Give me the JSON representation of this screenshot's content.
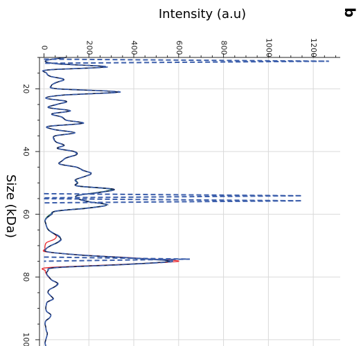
{
  "chart_data": {
    "type": "line",
    "panel_label": "b",
    "xlabel": "Size (kDa)",
    "ylabel": "Intensity (a.u)",
    "xlim": [
      10,
      102
    ],
    "ylim": [
      -20,
      1320
    ],
    "xticks": [
      20,
      40,
      60,
      80,
      100
    ],
    "yticks": [
      0,
      200,
      400,
      600,
      800,
      1000,
      1200
    ],
    "x_tick_labels": [
      "20",
      "40",
      "60",
      "80",
      "100"
    ],
    "y_tick_labels": [
      "0",
      "200",
      "400",
      "600",
      "800",
      "1000",
      "1200"
    ],
    "grid": true,
    "legend": "none",
    "colors": {
      "navy": "#0b1d4d",
      "blue_dashed": "#3b5eab",
      "green": "#2e7d4f",
      "red": "#e8262b",
      "grid": "#d9d9d9",
      "axis": "#222222"
    },
    "series": [
      {
        "x": [
          10,
          11,
          12,
          13,
          14,
          15,
          16,
          17,
          18,
          19,
          20,
          21,
          22,
          23,
          24,
          25,
          26,
          27,
          28,
          29,
          30,
          31,
          32,
          33,
          34,
          35,
          36,
          37,
          38,
          39,
          40,
          41,
          42,
          43,
          44,
          45,
          46,
          47,
          48,
          49,
          50,
          51,
          52,
          53,
          54,
          55,
          56,
          57,
          58,
          59,
          60,
          61,
          62,
          63,
          64,
          65,
          66,
          67,
          68,
          69,
          70,
          71,
          72,
          73,
          74,
          75,
          76,
          77,
          78,
          79,
          80,
          81,
          82,
          83,
          84,
          85,
          86,
          87,
          88,
          89,
          90,
          91,
          92,
          93,
          94,
          95,
          96,
          97,
          98,
          99,
          100,
          101,
          102
        ],
        "values": [
          100,
          8,
          55,
          275,
          18,
          12,
          28,
          88,
          55,
          33,
          60,
          330,
          85,
          8,
          100,
          55,
          20,
          115,
          35,
          80,
          100,
          170,
          18,
          48,
          135,
          50,
          45,
          55,
          90,
          60,
          135,
          145,
          100,
          80,
          70,
          145,
          175,
          210,
          180,
          140,
          150,
          150,
          310,
          250,
          150,
          150,
          200,
          280,
          200,
          55,
          35,
          15,
          5,
          8,
          12,
          20,
          40,
          65,
          75,
          60,
          30,
          10,
          18,
          160,
          400,
          560,
          360,
          55,
          18,
          12,
          22,
          35,
          60,
          50,
          25,
          18,
          30,
          40,
          15,
          10,
          8,
          12,
          30,
          25,
          8,
          5,
          8,
          10,
          15,
          12,
          8,
          5,
          8
        ]
      },
      {
        "x": [
          10,
          11,
          12,
          13,
          14,
          15,
          16,
          17,
          18,
          19,
          20,
          21,
          22,
          23,
          24,
          25,
          26,
          27,
          28,
          29,
          30,
          31,
          32,
          33,
          34,
          35,
          36,
          37,
          38,
          39,
          40,
          41,
          42,
          43,
          44,
          45,
          46,
          47,
          48,
          49,
          50,
          51,
          52,
          53,
          54,
          55,
          56,
          57,
          58,
          59,
          60,
          61,
          62,
          63,
          64,
          65,
          66,
          67,
          68,
          69,
          70,
          71,
          72,
          73,
          74,
          75,
          76,
          77,
          78,
          79,
          80,
          81,
          82,
          83,
          84,
          85,
          86,
          87,
          88,
          89,
          90,
          91,
          92,
          93,
          94,
          95,
          96,
          97,
          98,
          99,
          100,
          101,
          102
        ],
        "values": [
          95,
          10,
          50,
          285,
          15,
          12,
          26,
          92,
          52,
          35,
          58,
          340,
          88,
          8,
          98,
          58,
          22,
          118,
          33,
          78,
          98,
          175,
          20,
          46,
          138,
          52,
          43,
          57,
          88,
          62,
          132,
          142,
          98,
          82,
          72,
          148,
          172,
          215,
          178,
          142,
          148,
          152,
          305,
          255,
          152,
          148,
          198,
          285,
          198,
          52,
          33,
          15,
          5,
          8,
          12,
          20,
          42,
          68,
          78,
          62,
          30,
          10,
          18,
          170,
          410,
          580,
          368,
          58,
          18,
          12,
          22,
          35,
          62,
          52,
          25,
          18,
          30,
          42,
          15,
          10,
          8,
          12,
          30,
          25,
          8,
          5,
          8,
          10,
          15,
          12,
          8,
          5,
          8
        ]
      },
      {
        "x": [
          49,
          50,
          51,
          52,
          53,
          54,
          55,
          56,
          57,
          58,
          59,
          60,
          61,
          62,
          63,
          64,
          65,
          66,
          67,
          68,
          69,
          70
        ],
        "values": [
          140,
          150,
          150,
          300,
          245,
          150,
          150,
          200,
          280,
          195,
          55,
          30,
          12,
          5,
          8,
          12,
          20,
          40,
          65,
          75,
          60,
          30
        ]
      },
      {
        "x": [
          66,
          67,
          68,
          69,
          70,
          71,
          72,
          73,
          74,
          75,
          76,
          77,
          78,
          79,
          80,
          81,
          82,
          83,
          84,
          85,
          86,
          87,
          88,
          89
        ],
        "values": [
          40,
          55,
          45,
          12,
          5,
          5,
          10,
          170,
          420,
          600,
          340,
          20,
          6,
          10,
          20,
          35,
          60,
          50,
          25,
          18,
          30,
          40,
          15,
          10
        ]
      }
    ],
    "peak_markers": [
      {
        "x": 11.2,
        "y": 1270
      },
      {
        "x": 54.1,
        "y": 1150
      },
      {
        "x": 55.7,
        "y": 1150
      },
      {
        "x": 74.3,
        "y": 650
      }
    ]
  }
}
